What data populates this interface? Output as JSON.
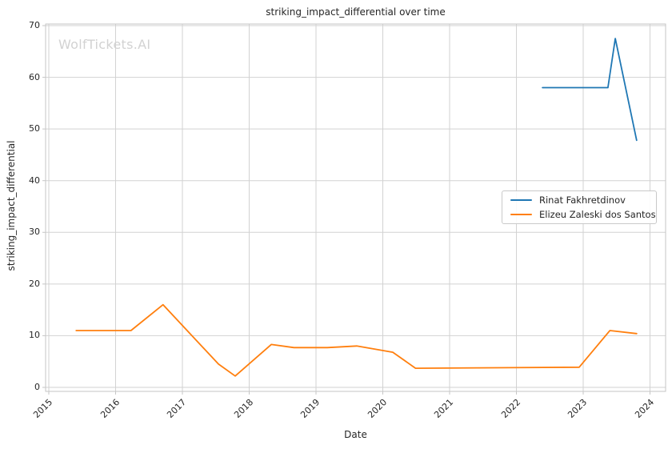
{
  "watermark": "WolfTickets.AI",
  "chart_data": {
    "type": "line",
    "title": "striking_impact_differential over time",
    "xlabel": "Date",
    "ylabel": "striking_impact_differential",
    "x_ticks": [
      2015,
      2016,
      2017,
      2018,
      2019,
      2020,
      2021,
      2022,
      2023,
      2024
    ],
    "y_ticks": [
      0,
      10,
      20,
      30,
      40,
      50,
      60,
      70
    ],
    "x_range": [
      2014.95,
      2024.25
    ],
    "ylim": [
      0,
      70
    ],
    "grid": true,
    "legend_position": "center-right",
    "colors": {
      "grid": "#d2d2d2",
      "spine": "#c6c6c6",
      "text": "#262626"
    },
    "series": [
      {
        "name": "Rinat Fakhretdinov",
        "color": "#1f77b4",
        "x": [
          2022.39,
          2023.37,
          2023.48,
          2023.8
        ],
        "y": [
          58,
          58,
          67.5,
          47.8
        ]
      },
      {
        "name": "Elizeu Zaleski dos Santos",
        "color": "#ff7f0e",
        "x": [
          2015.41,
          2016.23,
          2016.71,
          2017.54,
          2017.79,
          2018.33,
          2018.67,
          2019.17,
          2019.61,
          2020.15,
          2020.49,
          2022.94,
          2023.4,
          2023.8
        ],
        "y": [
          11,
          11,
          16,
          4.5,
          2.2,
          8.3,
          7.7,
          7.7,
          8.0,
          6.8,
          3.7,
          3.9,
          11,
          10.4
        ]
      }
    ]
  }
}
